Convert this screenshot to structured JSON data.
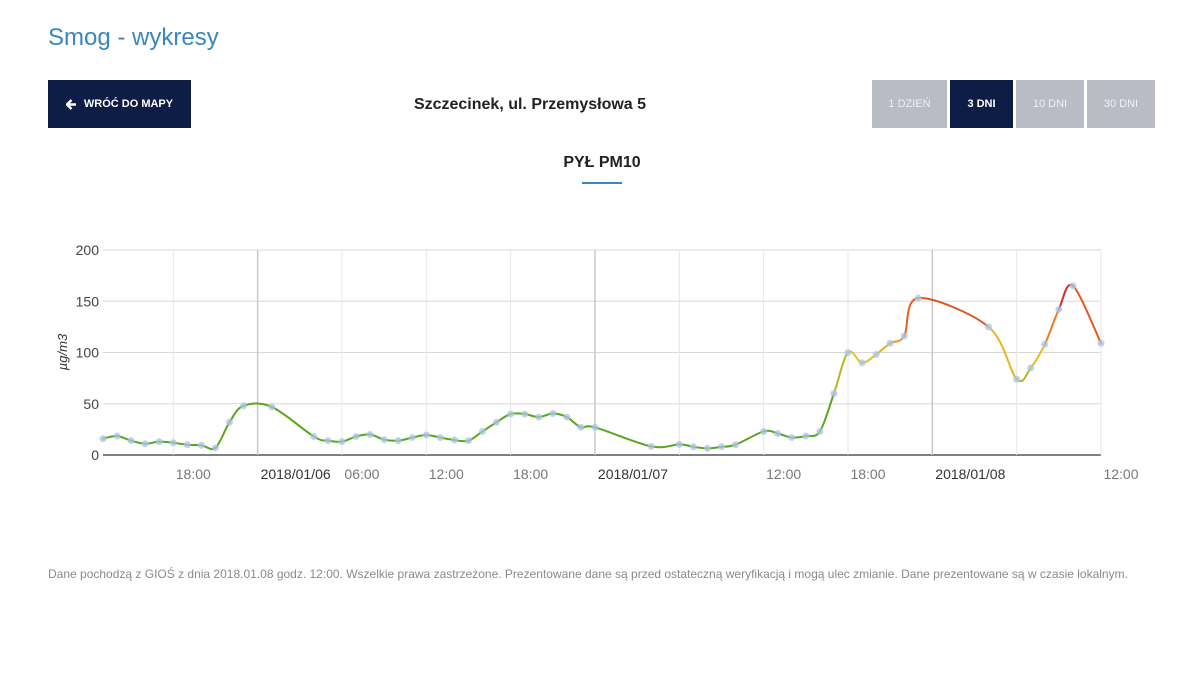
{
  "header": {
    "title": "Smog - wykresy",
    "back_label": "WRÓĆ DO MAPY",
    "back_icon": "arrow-left-icon",
    "station": "Szczecinek, ul. Przemysłowa 5"
  },
  "ranges": [
    {
      "label": "1 DZIEŃ",
      "active": false
    },
    {
      "label": "3 DNI",
      "active": true
    },
    {
      "label": "10 DNI",
      "active": false
    },
    {
      "label": "30 DNI",
      "active": false
    }
  ],
  "colors": {
    "navy": "#0e1d45",
    "accent": "#3a86bd",
    "good": "#5aa51c",
    "moderate": "#e6c21e",
    "bad": "#f07a1e",
    "very_bad": "#c81e28"
  },
  "chart_data": {
    "type": "line",
    "title": "PYŁ PM10",
    "ylabel": "µg/m3",
    "xlabel": "",
    "ylim": [
      0,
      200
    ],
    "yticks": [
      "0",
      "50",
      "100",
      "150",
      "200"
    ],
    "start": "2018/01/05 13:00",
    "end": "2018/01/08 12:00",
    "xticks": [
      {
        "t": "2018/01/05 18:00",
        "label": "18:00"
      },
      {
        "t": "2018/01/06 00:00",
        "label": "2018/01/06",
        "date": true
      },
      {
        "t": "2018/01/06 06:00",
        "label": "06:00"
      },
      {
        "t": "2018/01/06 12:00",
        "label": "12:00"
      },
      {
        "t": "2018/01/06 18:00",
        "label": "18:00"
      },
      {
        "t": "2018/01/07 00:00",
        "label": "2018/01/07",
        "date": true
      },
      {
        "t": "2018/01/07 06:00",
        "label": ""
      },
      {
        "t": "2018/01/07 12:00",
        "label": "12:00"
      },
      {
        "t": "2018/01/07 18:00",
        "label": "18:00"
      },
      {
        "t": "2018/01/08 00:00",
        "label": "2018/01/08",
        "date": true
      },
      {
        "t": "2018/01/08 06:00",
        "label": ""
      },
      {
        "t": "2018/01/08 12:00",
        "label": "12:00"
      }
    ],
    "grid": true,
    "legend": "none",
    "points": [
      [
        "2018/01/05 13:00",
        16
      ],
      [
        "2018/01/05 14:00",
        18.5
      ],
      [
        "2018/01/05 15:00",
        14
      ],
      [
        "2018/01/05 16:00",
        11
      ],
      [
        "2018/01/05 17:00",
        13
      ],
      [
        "2018/01/05 18:00",
        12
      ],
      [
        "2018/01/05 19:00",
        10
      ],
      [
        "2018/01/05 20:00",
        9.5
      ],
      [
        "2018/01/05 21:00",
        7
      ],
      [
        "2018/01/05 22:00",
        32
      ],
      [
        "2018/01/05 23:00",
        48
      ],
      [
        "2018/01/06 01:00",
        47
      ],
      [
        "2018/01/06 04:00",
        18
      ],
      [
        "2018/01/06 05:00",
        14
      ],
      [
        "2018/01/06 06:00",
        13
      ],
      [
        "2018/01/06 07:00",
        18
      ],
      [
        "2018/01/06 08:00",
        20
      ],
      [
        "2018/01/06 09:00",
        15
      ],
      [
        "2018/01/06 10:00",
        14
      ],
      [
        "2018/01/06 11:00",
        17
      ],
      [
        "2018/01/06 12:00",
        19.5
      ],
      [
        "2018/01/06 13:00",
        17
      ],
      [
        "2018/01/06 14:00",
        14.6
      ],
      [
        "2018/01/06 15:00",
        14
      ],
      [
        "2018/01/06 16:00",
        23
      ],
      [
        "2018/01/06 17:00",
        32
      ],
      [
        "2018/01/06 18:00",
        40
      ],
      [
        "2018/01/06 19:00",
        40
      ],
      [
        "2018/01/06 20:00",
        37
      ],
      [
        "2018/01/06 21:00",
        40.5
      ],
      [
        "2018/01/06 22:00",
        37
      ],
      [
        "2018/01/06 23:00",
        27
      ],
      [
        "2018/01/07 00:00",
        27
      ],
      [
        "2018/01/07 04:00",
        8.4
      ],
      [
        "2018/01/07 06:00",
        10.4
      ],
      [
        "2018/01/07 07:00",
        8
      ],
      [
        "2018/01/07 08:00",
        6.5
      ],
      [
        "2018/01/07 09:00",
        8
      ],
      [
        "2018/01/07 10:00",
        10
      ],
      [
        "2018/01/07 12:00",
        23
      ],
      [
        "2018/01/07 13:00",
        21
      ],
      [
        "2018/01/07 14:00",
        17
      ],
      [
        "2018/01/07 15:00",
        18.5
      ],
      [
        "2018/01/07 16:00",
        23
      ],
      [
        "2018/01/07 17:00",
        60
      ],
      [
        "2018/01/07 18:00",
        100
      ],
      [
        "2018/01/07 19:00",
        90
      ],
      [
        "2018/01/07 20:00",
        98
      ],
      [
        "2018/01/07 21:00",
        109
      ],
      [
        "2018/01/07 22:00",
        116
      ],
      [
        "2018/01/07 23:00",
        153
      ],
      [
        "2018/01/08 04:00",
        125
      ],
      [
        "2018/01/08 06:00",
        74
      ],
      [
        "2018/01/08 07:00",
        85
      ],
      [
        "2018/01/08 08:00",
        108
      ],
      [
        "2018/01/08 09:00",
        142
      ],
      [
        "2018/01/08 10:00",
        165
      ],
      [
        "2018/01/08 12:00",
        109
      ]
    ]
  },
  "footer": "Dane pochodzą z GIOŚ z dnia 2018.01.08 godz. 12:00. Wszelkie prawa zastrzeżone. Prezentowane dane są przed ostateczną weryfikacją i mogą ulec zmianie. Dane prezentowane są w czasie lokalnym."
}
